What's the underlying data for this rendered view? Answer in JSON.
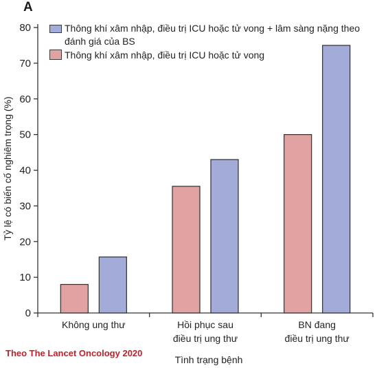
{
  "panel_label": "A",
  "source_note": "Theo The Lancet Oncology 2020",
  "colors": {
    "series_1": "#a3acd8",
    "series_2": "#e0a3a1",
    "axis": "#333333"
  },
  "chart_data": {
    "type": "bar",
    "title": "",
    "xlabel": "Tình trạng bệnh",
    "ylabel": "Tỷ lệ có biến cố nghiêm trọng (%)",
    "ylim": [
      0,
      80
    ],
    "yticks": [
      0,
      10,
      20,
      30,
      40,
      50,
      60,
      70,
      80
    ],
    "ytick_labels": [
      "0",
      "10",
      "20",
      "30",
      "40",
      "50",
      "60",
      "70",
      "80"
    ],
    "categories": [
      [
        "Không ung thư"
      ],
      [
        "Hồi phục sau",
        "điều trị ung thư"
      ],
      [
        "BN đang",
        "điều trị ung thư"
      ]
    ],
    "series": [
      {
        "name": "Thông khí xâm nhập, điều trị ICU hoặc tử vong",
        "values": [
          8,
          35.5,
          50
        ]
      },
      {
        "name": "Thông khí xâm nhập, điều trị ICU hoặc tử vong + lâm sàng nặng theo đánh giá của  BS",
        "values": [
          15.7,
          43,
          75
        ]
      }
    ],
    "legend_position": "top-left",
    "grid": false
  }
}
